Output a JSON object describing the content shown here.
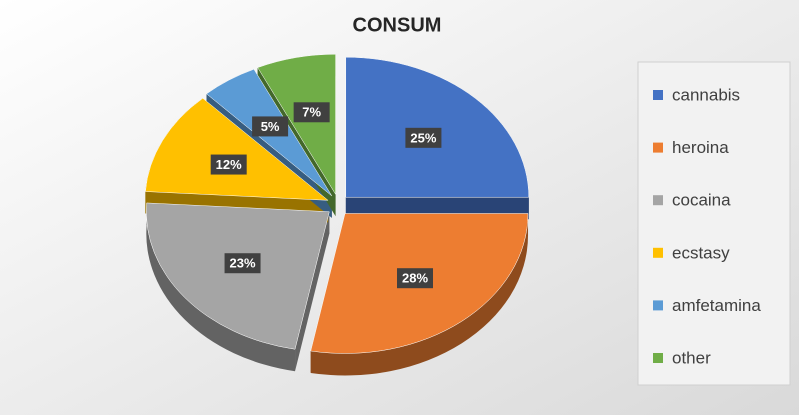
{
  "chart_data": {
    "type": "pie",
    "title": "CONSUM",
    "categories": [
      "cannabis",
      "heroina",
      "cocaina",
      "ecstasy",
      "amfetamina",
      "other"
    ],
    "values": [
      25,
      28,
      23,
      12,
      5,
      7
    ],
    "value_labels": [
      "25%",
      "28%",
      "23%",
      "12%",
      "5%",
      "7%"
    ],
    "colors": [
      "#4472c4",
      "#ed7d31",
      "#a5a5a5",
      "#ffc000",
      "#5b9bd5",
      "#70ad47"
    ],
    "legend": "right"
  }
}
